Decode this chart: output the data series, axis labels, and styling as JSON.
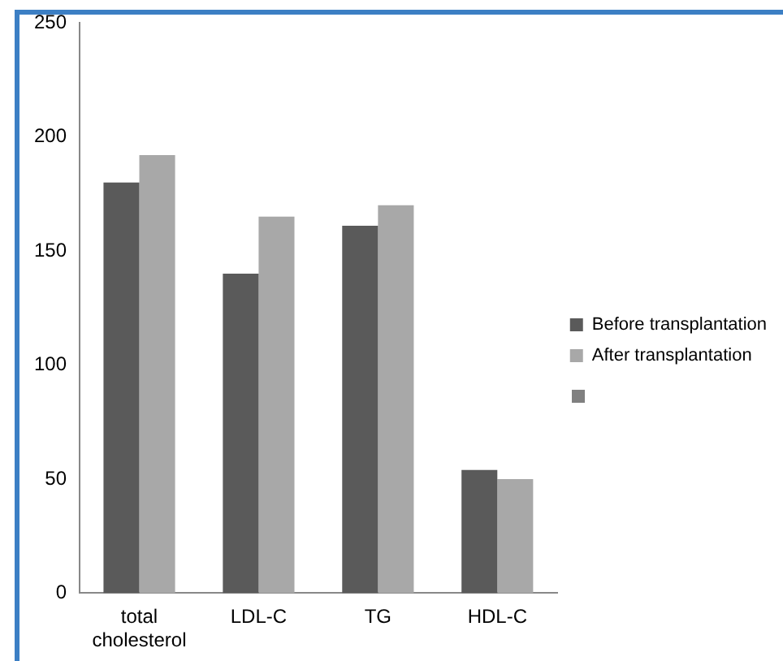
{
  "chart_data": {
    "type": "bar",
    "categories": [
      "total cholesterol",
      "LDL-C",
      "TG",
      "HDL-C"
    ],
    "series": [
      {
        "name": "Before transplantation",
        "color": "#5a5a5a",
        "values": [
          180,
          140,
          161,
          54
        ]
      },
      {
        "name": "After transplantation",
        "color": "#a8a8a8",
        "values": [
          192,
          165,
          170,
          50
        ]
      }
    ],
    "ylim": [
      0,
      250
    ],
    "yticks": [
      0,
      50,
      100,
      150,
      200,
      250
    ],
    "grid": false,
    "legend": "right"
  }
}
